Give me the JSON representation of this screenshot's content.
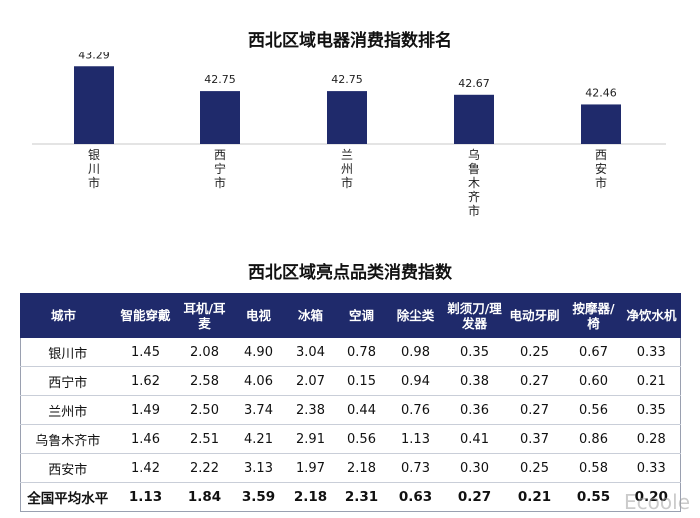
{
  "colors": {
    "bar": "#1f2a6b",
    "header_bg": "#1f2a6b",
    "axis": "#c8c8c8"
  },
  "chart_data": {
    "type": "bar",
    "title": "西北区域电器消费指数排名",
    "categories": [
      "银川市",
      "西宁市",
      "兰州市",
      "乌鲁木齐市",
      "西安市"
    ],
    "values": [
      43.29,
      42.75,
      42.75,
      42.67,
      42.46
    ],
    "value_labels": [
      "43.29",
      "42.75",
      "42.75",
      "42.67",
      "42.46"
    ],
    "ylim": [
      41.6,
      43.6
    ],
    "xlabel": "",
    "ylabel": "",
    "grid": false,
    "legend": "none"
  },
  "table": {
    "title": "西北区域亮点品类消费指数",
    "headers": [
      "城市",
      "智能穿戴",
      "耳机/耳麦",
      "电视",
      "冰箱",
      "空调",
      "除尘类",
      "剃须刀/理发器",
      "电动牙刷",
      "按摩器/椅",
      "净饮水机"
    ],
    "rows": [
      [
        "银川市",
        "1.45",
        "2.08",
        "4.90",
        "3.04",
        "0.78",
        "0.98",
        "0.35",
        "0.25",
        "0.67",
        "0.33"
      ],
      [
        "西宁市",
        "1.62",
        "2.58",
        "4.06",
        "2.07",
        "0.15",
        "0.94",
        "0.38",
        "0.27",
        "0.60",
        "0.21"
      ],
      [
        "兰州市",
        "1.49",
        "2.50",
        "3.74",
        "2.38",
        "0.44",
        "0.76",
        "0.36",
        "0.27",
        "0.56",
        "0.35"
      ],
      [
        "乌鲁木齐市",
        "1.46",
        "2.51",
        "4.21",
        "2.91",
        "0.56",
        "1.13",
        "0.41",
        "0.37",
        "0.86",
        "0.28"
      ],
      [
        "西安市",
        "1.42",
        "2.22",
        "3.13",
        "1.97",
        "2.18",
        "0.73",
        "0.30",
        "0.25",
        "0.58",
        "0.33"
      ]
    ],
    "average_row": [
      "全国平均水平",
      "1.13",
      "1.84",
      "3.59",
      "2.18",
      "2.31",
      "0.63",
      "0.27",
      "0.21",
      "0.55",
      "0.20"
    ]
  },
  "watermark": "Ecoole"
}
